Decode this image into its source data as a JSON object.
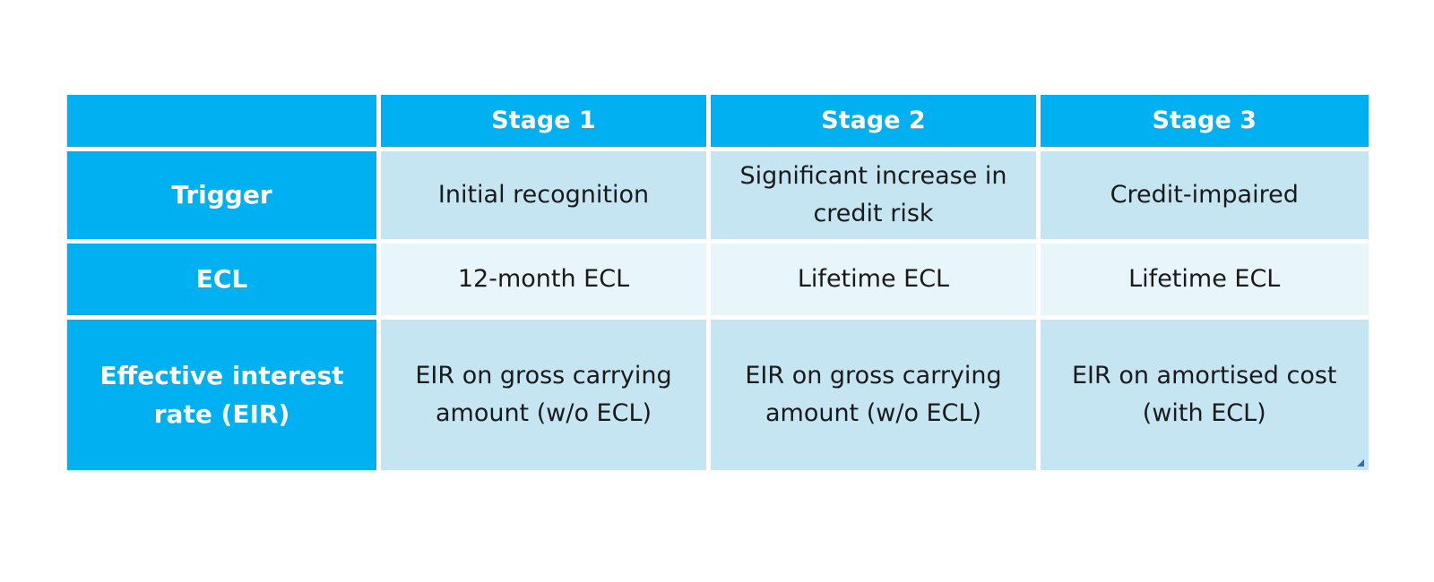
{
  "table": {
    "headers": [
      "",
      "Stage 1",
      "Stage 2",
      "Stage 3"
    ],
    "rows": [
      {
        "label": "Trigger",
        "cells": [
          "Initial recognition",
          "Significant increase in credit risk",
          "Credit-impaired"
        ]
      },
      {
        "label": "ECL",
        "cells": [
          "12-month ECL",
          "Lifetime ECL",
          "Lifetime ECL"
        ]
      },
      {
        "label": "Effective interest rate (EIR)",
        "cells": [
          "EIR on gross carrying amount (w/o ECL)",
          "EIR on gross carrying amount (w/o ECL)",
          "EIR on amortised cost (with ECL)"
        ]
      }
    ]
  },
  "colors": {
    "header_bg": "#00b0f0",
    "band_dark": "#c5e5f3",
    "band_light": "#e8f5fb",
    "corner_mark": "#2d6fb5"
  }
}
